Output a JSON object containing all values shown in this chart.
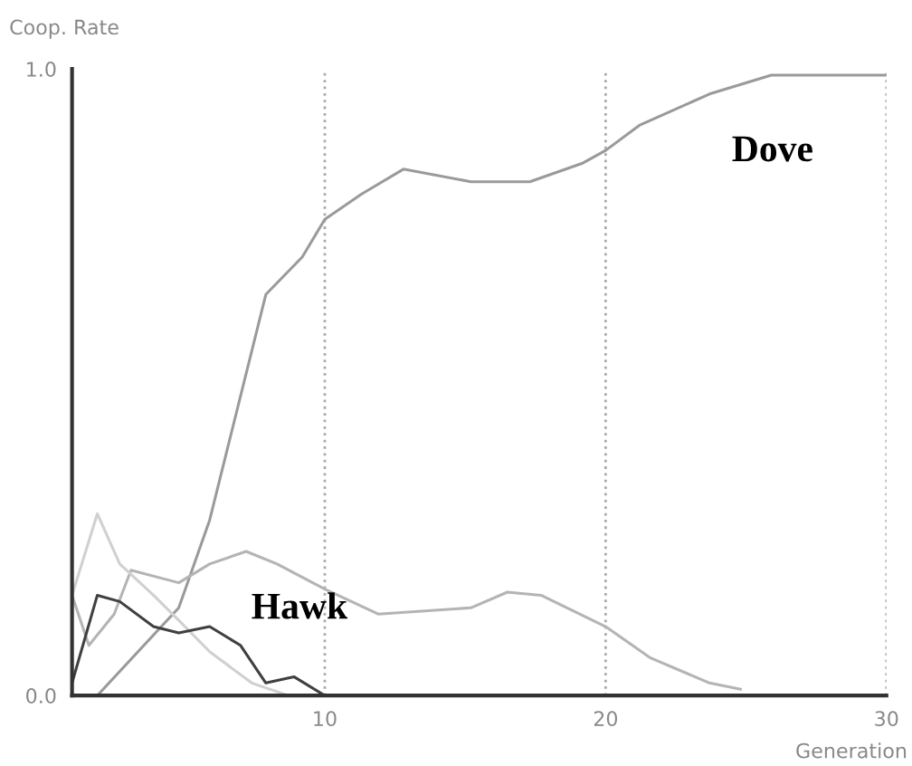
{
  "chart_data": {
    "type": "line",
    "ylabel": "Coop. Rate",
    "xlabel": "Generation",
    "xlim": [
      1,
      30
    ],
    "xticks": [
      10,
      20,
      30
    ],
    "ylim": [
      0,
      1
    ],
    "yticks": [
      {
        "value": 0,
        "label": "0.0"
      },
      {
        "value": 1,
        "label": "1.0"
      }
    ],
    "grid": "x",
    "legend": false,
    "marker": "none",
    "line_style": "solid",
    "series": [
      {
        "color": "#9a9a9a",
        "x": [
          1,
          1.9,
          4.8,
          5.9,
          7.9,
          9.2,
          10,
          11.3,
          12.8,
          15.2,
          17.3,
          19.2,
          20,
          21.2,
          23.7,
          25.9,
          30
        ],
        "values": [
          0,
          0,
          0.14,
          0.28,
          0.64,
          0.7,
          0.76,
          0.8,
          0.84,
          0.82,
          0.82,
          0.85,
          0.87,
          0.91,
          0.96,
          0.99,
          0.99
        ]
      },
      {
        "color": "#b4b4b4",
        "x": [
          1,
          1.6,
          2.5,
          3.1,
          4.8,
          5.9,
          7.2,
          8.3,
          10,
          11.9,
          15.2,
          16.5,
          17.7,
          20,
          21.6,
          23.7,
          24.8
        ],
        "values": [
          0.16,
          0.08,
          0.13,
          0.2,
          0.18,
          0.21,
          0.23,
          0.21,
          0.17,
          0.13,
          0.14,
          0.165,
          0.16,
          0.11,
          0.06,
          0.02,
          0.01
        ]
      },
      {
        "color": "#d0d0d0",
        "x": [
          1,
          1.9,
          2.7,
          3.9,
          4.8,
          5.9,
          7.4,
          8.7
        ],
        "values": [
          0.16,
          0.29,
          0.21,
          0.16,
          0.12,
          0.07,
          0.02,
          0
        ]
      },
      {
        "color": "#404040",
        "x": [
          1,
          1.9,
          2.7,
          3.9,
          4.8,
          5.9,
          7,
          7.9,
          8.9,
          10
        ],
        "values": [
          0.02,
          0.16,
          0.15,
          0.11,
          0.1,
          0.11,
          0.08,
          0.02,
          0.03,
          0
        ]
      }
    ],
    "annotations": [
      "Dove",
      "Hawk"
    ]
  }
}
